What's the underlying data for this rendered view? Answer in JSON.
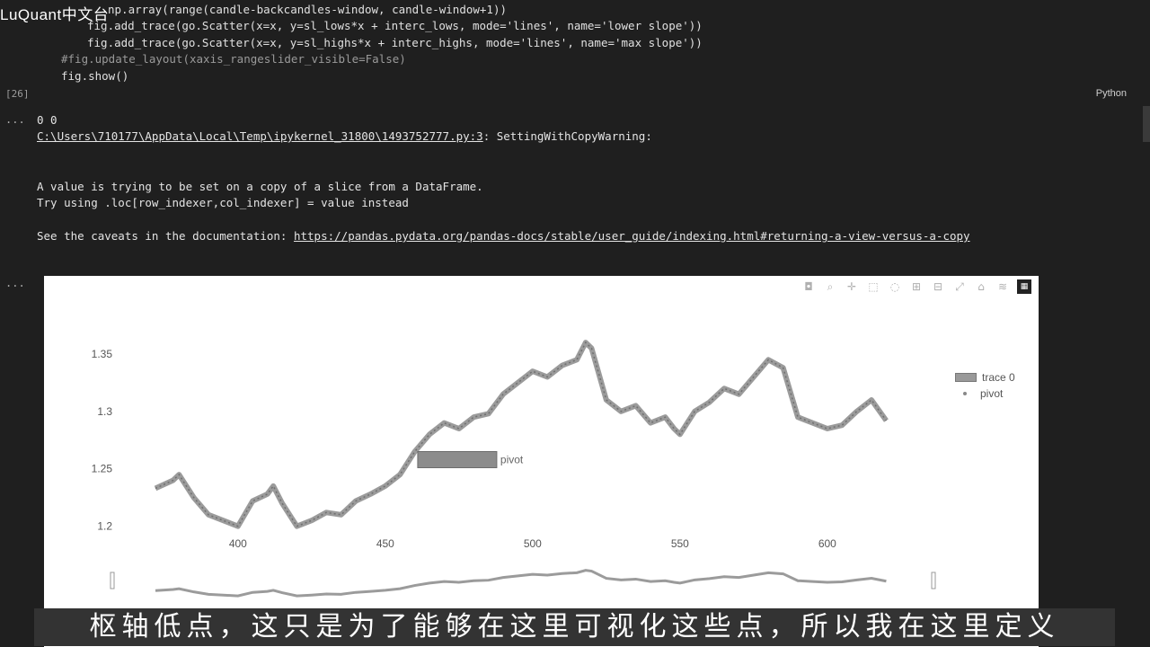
{
  "watermark": "LuQuant中文台",
  "code_cell": {
    "lines": [
      {
        "indent": 120,
        "text": "np.array(range(candle-backcandles-window, candle-window+1))",
        "comment": false
      },
      {
        "indent": 97,
        "text": "fig.add_trace(go.Scatter(x=x, y=sl_lows*x + interc_lows, mode='lines', name='lower slope'))",
        "comment": false
      },
      {
        "indent": 97,
        "text": "fig.add_trace(go.Scatter(x=x, y=sl_highs*x + interc_highs, mode='lines', name='max slope'))",
        "comment": false
      },
      {
        "indent": 68,
        "text": "#fig.update_layout(xaxis_rangeslider_visible=False)",
        "comment": true
      },
      {
        "indent": 68,
        "text": "fig.show()",
        "comment": false
      }
    ],
    "exec_count": "[26]",
    "language": "Python"
  },
  "output": {
    "ellipsis": "...",
    "counts": "0 0",
    "warning_path": "C:\\Users\\710177\\AppData\\Local\\Temp\\ipykernel_31800\\1493752777.py:3",
    "warning_type": ": SettingWithCopyWarning:",
    "message_1": "A value is trying to be set on a copy of a slice from a DataFrame.",
    "message_2": "Try using .loc[row_indexer,col_indexer] = value instead",
    "caveat_prefix": "See the caveats in the documentation: ",
    "caveat_link": "https://pandas.pydata.org/pandas-docs/stable/user_guide/indexing.html#returning-a-view-versus-a-copy"
  },
  "plot": {
    "ellipsis": "...",
    "modebar_icons": [
      "camera-icon",
      "zoom-icon",
      "pan-icon",
      "box-select-icon",
      "lasso-icon",
      "zoom-in-icon",
      "zoom-out-icon",
      "autoscale-icon",
      "reset-axes-icon",
      "spike-lines-icon",
      "plotly-logo-icon"
    ],
    "legend": [
      {
        "name": "trace 0",
        "kind": "candle"
      },
      {
        "name": "pivot",
        "kind": "marker"
      }
    ],
    "annotation": "pivot"
  },
  "chart_data": {
    "type": "line",
    "title": "",
    "xlabel": "",
    "ylabel": "",
    "xlim": [
      372,
      622
    ],
    "ylim": [
      1.195,
      1.375
    ],
    "x_ticks": [
      400,
      450,
      500,
      550,
      600
    ],
    "y_ticks": [
      1.2,
      1.25,
      1.3,
      1.35
    ],
    "x_tick_labels": [
      "400",
      "450",
      "500",
      "550",
      "600"
    ],
    "y_tick_labels": [
      "1.2",
      "1.25",
      "1.3",
      "1.35"
    ],
    "series": [
      {
        "name": "trace 0",
        "x": [
          372,
          378,
          380,
          385,
          390,
          395,
          400,
          405,
          410,
          412,
          415,
          420,
          425,
          430,
          435,
          440,
          445,
          450,
          455,
          460,
          465,
          470,
          475,
          480,
          485,
          490,
          495,
          500,
          505,
          510,
          515,
          518,
          520,
          525,
          530,
          535,
          540,
          545,
          548,
          550,
          555,
          560,
          565,
          570,
          575,
          580,
          585,
          590,
          595,
          600,
          605,
          610,
          615,
          620
        ],
        "values": [
          1.233,
          1.24,
          1.245,
          1.225,
          1.21,
          1.205,
          1.2,
          1.222,
          1.228,
          1.235,
          1.22,
          1.2,
          1.205,
          1.212,
          1.21,
          1.222,
          1.228,
          1.235,
          1.245,
          1.265,
          1.28,
          1.29,
          1.285,
          1.295,
          1.298,
          1.315,
          1.325,
          1.335,
          1.33,
          1.34,
          1.345,
          1.36,
          1.355,
          1.31,
          1.3,
          1.305,
          1.29,
          1.295,
          1.285,
          1.28,
          1.3,
          1.308,
          1.32,
          1.315,
          1.33,
          1.345,
          1.338,
          1.295,
          1.29,
          1.285,
          1.288,
          1.3,
          1.31,
          1.292
        ]
      },
      {
        "name": "pivot",
        "x": [],
        "values": []
      }
    ],
    "rangeslider": true,
    "legend_position": "top-right"
  },
  "subtitle": "枢轴低点，这只是为了能够在这里可视化这些点，所以我在这里定义"
}
